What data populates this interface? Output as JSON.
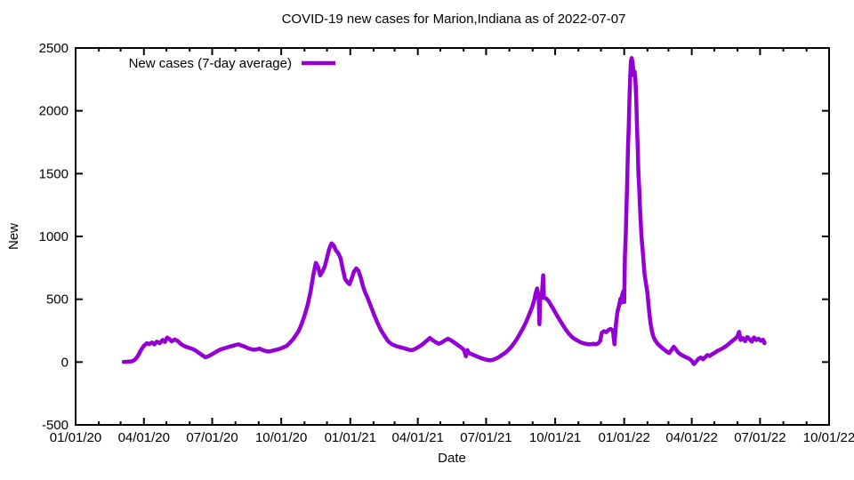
{
  "chart_data": {
    "type": "line",
    "title": "COVID-19 new cases for Marion,Indiana as of 2022-07-07",
    "xlabel": "Date",
    "ylabel": "New",
    "xlim": [
      "01/01/20",
      "10/01/22"
    ],
    "ylim": [
      -500,
      2500
    ],
    "yticks": [
      -500,
      0,
      500,
      1000,
      1500,
      2000,
      2500
    ],
    "xticks": [
      "01/01/20",
      "04/01/20",
      "07/01/20",
      "10/01/20",
      "01/01/21",
      "04/01/21",
      "07/01/21",
      "10/01/21",
      "01/01/22",
      "04/01/22",
      "07/01/22",
      "10/01/22"
    ],
    "minor_ticks": "monthly",
    "grid": false,
    "legend_position": "top-left-inside",
    "line_color": "#9400d3",
    "axis_color": "#000000",
    "line_width": 4.5,
    "series": [
      {
        "name": "New cases (7-day average)",
        "color": "#9400d3",
        "points": [
          [
            "2020-03-05",
            2
          ],
          [
            "2020-03-10",
            3
          ],
          [
            "2020-03-16",
            6
          ],
          [
            "2020-03-20",
            18
          ],
          [
            "2020-03-24",
            48
          ],
          [
            "2020-03-28",
            95
          ],
          [
            "2020-04-01",
            130
          ],
          [
            "2020-04-05",
            150
          ],
          [
            "2020-04-08",
            143
          ],
          [
            "2020-04-12",
            156
          ],
          [
            "2020-04-15",
            140
          ],
          [
            "2020-04-18",
            162
          ],
          [
            "2020-04-22",
            150
          ],
          [
            "2020-04-26",
            176
          ],
          [
            "2020-04-29",
            160
          ],
          [
            "2020-05-02",
            195
          ],
          [
            "2020-05-05",
            183
          ],
          [
            "2020-05-08",
            165
          ],
          [
            "2020-05-12",
            180
          ],
          [
            "2020-05-16",
            168
          ],
          [
            "2020-05-20",
            145
          ],
          [
            "2020-05-24",
            130
          ],
          [
            "2020-05-28",
            120
          ],
          [
            "2020-06-01",
            112
          ],
          [
            "2020-06-05",
            104
          ],
          [
            "2020-06-10",
            88
          ],
          [
            "2020-06-14",
            70
          ],
          [
            "2020-06-18",
            54
          ],
          [
            "2020-06-22",
            38
          ],
          [
            "2020-06-26",
            46
          ],
          [
            "2020-06-30",
            60
          ],
          [
            "2020-07-04",
            74
          ],
          [
            "2020-07-08",
            88
          ],
          [
            "2020-07-12",
            100
          ],
          [
            "2020-07-16",
            108
          ],
          [
            "2020-07-20",
            115
          ],
          [
            "2020-07-24",
            122
          ],
          [
            "2020-07-28",
            128
          ],
          [
            "2020-08-01",
            136
          ],
          [
            "2020-08-05",
            141
          ],
          [
            "2020-08-09",
            132
          ],
          [
            "2020-08-13",
            124
          ],
          [
            "2020-08-17",
            112
          ],
          [
            "2020-08-21",
            104
          ],
          [
            "2020-08-25",
            98
          ],
          [
            "2020-08-29",
            101
          ],
          [
            "2020-09-02",
            108
          ],
          [
            "2020-09-06",
            96
          ],
          [
            "2020-09-10",
            88
          ],
          [
            "2020-09-14",
            84
          ],
          [
            "2020-09-18",
            88
          ],
          [
            "2020-09-22",
            95
          ],
          [
            "2020-09-26",
            100
          ],
          [
            "2020-09-30",
            108
          ],
          [
            "2020-10-04",
            118
          ],
          [
            "2020-10-08",
            128
          ],
          [
            "2020-10-12",
            150
          ],
          [
            "2020-10-16",
            176
          ],
          [
            "2020-10-20",
            210
          ],
          [
            "2020-10-24",
            246
          ],
          [
            "2020-10-28",
            300
          ],
          [
            "2020-11-01",
            368
          ],
          [
            "2020-11-05",
            452
          ],
          [
            "2020-11-09",
            560
          ],
          [
            "2020-11-13",
            700
          ],
          [
            "2020-11-16",
            790
          ],
          [
            "2020-11-19",
            758
          ],
          [
            "2020-11-22",
            690
          ],
          [
            "2020-11-25",
            722
          ],
          [
            "2020-11-28",
            762
          ],
          [
            "2020-12-01",
            830
          ],
          [
            "2020-12-04",
            902
          ],
          [
            "2020-12-07",
            945
          ],
          [
            "2020-12-10",
            928
          ],
          [
            "2020-12-13",
            888
          ],
          [
            "2020-12-16",
            866
          ],
          [
            "2020-12-19",
            828
          ],
          [
            "2020-12-22",
            742
          ],
          [
            "2020-12-25",
            662
          ],
          [
            "2020-12-28",
            636
          ],
          [
            "2020-12-31",
            620
          ],
          [
            "2021-01-03",
            668
          ],
          [
            "2021-01-06",
            722
          ],
          [
            "2021-01-09",
            745
          ],
          [
            "2021-01-12",
            726
          ],
          [
            "2021-01-15",
            670
          ],
          [
            "2021-01-18",
            602
          ],
          [
            "2021-01-21",
            552
          ],
          [
            "2021-01-24",
            512
          ],
          [
            "2021-01-27",
            466
          ],
          [
            "2021-01-30",
            420
          ],
          [
            "2021-02-02",
            372
          ],
          [
            "2021-02-05",
            330
          ],
          [
            "2021-02-08",
            290
          ],
          [
            "2021-02-11",
            252
          ],
          [
            "2021-02-14",
            224
          ],
          [
            "2021-02-17",
            196
          ],
          [
            "2021-02-20",
            170
          ],
          [
            "2021-02-23",
            152
          ],
          [
            "2021-02-26",
            140
          ],
          [
            "2021-03-02",
            130
          ],
          [
            "2021-03-06",
            122
          ],
          [
            "2021-03-10",
            116
          ],
          [
            "2021-03-14",
            110
          ],
          [
            "2021-03-18",
            102
          ],
          [
            "2021-03-22",
            94
          ],
          [
            "2021-03-26",
            98
          ],
          [
            "2021-03-30",
            110
          ],
          [
            "2021-04-03",
            124
          ],
          [
            "2021-04-07",
            140
          ],
          [
            "2021-04-11",
            160
          ],
          [
            "2021-04-14",
            176
          ],
          [
            "2021-04-17",
            192
          ],
          [
            "2021-04-21",
            172
          ],
          [
            "2021-04-25",
            158
          ],
          [
            "2021-04-29",
            146
          ],
          [
            "2021-05-03",
            156
          ],
          [
            "2021-05-07",
            172
          ],
          [
            "2021-05-11",
            186
          ],
          [
            "2021-05-15",
            174
          ],
          [
            "2021-05-19",
            158
          ],
          [
            "2021-05-23",
            140
          ],
          [
            "2021-05-27",
            124
          ],
          [
            "2021-05-31",
            106
          ],
          [
            "2021-06-02",
            88
          ],
          [
            "2021-06-04",
            46
          ],
          [
            "2021-06-06",
            96
          ],
          [
            "2021-06-08",
            72
          ],
          [
            "2021-06-12",
            62
          ],
          [
            "2021-06-16",
            52
          ],
          [
            "2021-06-20",
            42
          ],
          [
            "2021-06-24",
            32
          ],
          [
            "2021-06-28",
            24
          ],
          [
            "2021-07-02",
            18
          ],
          [
            "2021-07-06",
            14
          ],
          [
            "2021-07-10",
            18
          ],
          [
            "2021-07-14",
            28
          ],
          [
            "2021-07-18",
            40
          ],
          [
            "2021-07-22",
            56
          ],
          [
            "2021-07-26",
            72
          ],
          [
            "2021-07-30",
            92
          ],
          [
            "2021-08-03",
            118
          ],
          [
            "2021-08-07",
            148
          ],
          [
            "2021-08-11",
            185
          ],
          [
            "2021-08-15",
            225
          ],
          [
            "2021-08-19",
            268
          ],
          [
            "2021-08-23",
            316
          ],
          [
            "2021-08-27",
            372
          ],
          [
            "2021-08-31",
            432
          ],
          [
            "2021-09-03",
            492
          ],
          [
            "2021-09-05",
            545
          ],
          [
            "2021-09-07",
            586
          ],
          [
            "2021-09-09",
            522
          ],
          [
            "2021-09-10",
            302
          ],
          [
            "2021-09-11",
            500
          ],
          [
            "2021-09-13",
            512
          ],
          [
            "2021-09-15",
            690
          ],
          [
            "2021-09-16",
            512
          ],
          [
            "2021-09-19",
            506
          ],
          [
            "2021-09-22",
            488
          ],
          [
            "2021-09-25",
            458
          ],
          [
            "2021-09-28",
            428
          ],
          [
            "2021-10-01",
            396
          ],
          [
            "2021-10-04",
            366
          ],
          [
            "2021-10-07",
            336
          ],
          [
            "2021-10-10",
            306
          ],
          [
            "2021-10-13",
            278
          ],
          [
            "2021-10-16",
            252
          ],
          [
            "2021-10-19",
            228
          ],
          [
            "2021-10-22",
            208
          ],
          [
            "2021-10-25",
            192
          ],
          [
            "2021-10-28",
            180
          ],
          [
            "2021-10-31",
            170
          ],
          [
            "2021-11-03",
            160
          ],
          [
            "2021-11-06",
            153
          ],
          [
            "2021-11-09",
            148
          ],
          [
            "2021-11-12",
            144
          ],
          [
            "2021-11-15",
            141
          ],
          [
            "2021-11-18",
            142
          ],
          [
            "2021-11-21",
            146
          ],
          [
            "2021-11-24",
            141
          ],
          [
            "2021-11-27",
            148
          ],
          [
            "2021-11-30",
            168
          ],
          [
            "2021-12-02",
            232
          ],
          [
            "2021-12-05",
            246
          ],
          [
            "2021-12-08",
            238
          ],
          [
            "2021-12-11",
            256
          ],
          [
            "2021-12-14",
            264
          ],
          [
            "2021-12-17",
            250
          ],
          [
            "2021-12-19",
            142
          ],
          [
            "2021-12-21",
            300
          ],
          [
            "2021-12-23",
            400
          ],
          [
            "2021-12-25",
            448
          ],
          [
            "2021-12-27",
            505
          ],
          [
            "2021-12-28",
            472
          ],
          [
            "2021-12-29",
            528
          ],
          [
            "2021-12-31",
            565
          ],
          [
            "2022-01-01",
            478
          ],
          [
            "2022-01-02",
            850
          ],
          [
            "2022-01-03",
            1002
          ],
          [
            "2022-01-04",
            1215
          ],
          [
            "2022-01-05",
            1450
          ],
          [
            "2022-01-06",
            1700
          ],
          [
            "2022-01-07",
            1876
          ],
          [
            "2022-01-08",
            2100
          ],
          [
            "2022-01-09",
            2268
          ],
          [
            "2022-01-10",
            2395
          ],
          [
            "2022-01-11",
            2420
          ],
          [
            "2022-01-12",
            2392
          ],
          [
            "2022-01-13",
            2330
          ],
          [
            "2022-01-14",
            2282
          ],
          [
            "2022-01-15",
            2312
          ],
          [
            "2022-01-16",
            2248
          ],
          [
            "2022-01-17",
            2098
          ],
          [
            "2022-01-18",
            1890
          ],
          [
            "2022-01-19",
            1702
          ],
          [
            "2022-01-20",
            1496
          ],
          [
            "2022-01-21",
            1380
          ],
          [
            "2022-01-22",
            1236
          ],
          [
            "2022-01-24",
            1000
          ],
          [
            "2022-01-26",
            860
          ],
          [
            "2022-01-28",
            702
          ],
          [
            "2022-01-30",
            622
          ],
          [
            "2022-02-01",
            550
          ],
          [
            "2022-02-03",
            420
          ],
          [
            "2022-02-05",
            312
          ],
          [
            "2022-02-07",
            246
          ],
          [
            "2022-02-09",
            200
          ],
          [
            "2022-02-12",
            166
          ],
          [
            "2022-02-15",
            142
          ],
          [
            "2022-02-18",
            126
          ],
          [
            "2022-02-21",
            110
          ],
          [
            "2022-02-24",
            96
          ],
          [
            "2022-02-27",
            82
          ],
          [
            "2022-03-02",
            72
          ],
          [
            "2022-03-05",
            96
          ],
          [
            "2022-03-08",
            122
          ],
          [
            "2022-03-11",
            100
          ],
          [
            "2022-03-14",
            76
          ],
          [
            "2022-03-17",
            62
          ],
          [
            "2022-03-20",
            52
          ],
          [
            "2022-03-23",
            42
          ],
          [
            "2022-03-26",
            34
          ],
          [
            "2022-03-29",
            24
          ],
          [
            "2022-04-01",
            10
          ],
          [
            "2022-04-04",
            -16
          ],
          [
            "2022-04-07",
            6
          ],
          [
            "2022-04-10",
            26
          ],
          [
            "2022-04-13",
            36
          ],
          [
            "2022-04-16",
            22
          ],
          [
            "2022-04-19",
            40
          ],
          [
            "2022-04-22",
            56
          ],
          [
            "2022-04-25",
            48
          ],
          [
            "2022-04-28",
            62
          ],
          [
            "2022-05-01",
            72
          ],
          [
            "2022-05-05",
            88
          ],
          [
            "2022-05-09",
            100
          ],
          [
            "2022-05-13",
            112
          ],
          [
            "2022-05-17",
            128
          ],
          [
            "2022-05-21",
            148
          ],
          [
            "2022-05-25",
            168
          ],
          [
            "2022-05-29",
            186
          ],
          [
            "2022-06-01",
            206
          ],
          [
            "2022-06-03",
            240
          ],
          [
            "2022-06-05",
            176
          ],
          [
            "2022-06-08",
            192
          ],
          [
            "2022-06-11",
            166
          ],
          [
            "2022-06-14",
            200
          ],
          [
            "2022-06-17",
            182
          ],
          [
            "2022-06-20",
            162
          ],
          [
            "2022-06-23",
            196
          ],
          [
            "2022-06-26",
            176
          ],
          [
            "2022-06-29",
            186
          ],
          [
            "2022-07-02",
            170
          ],
          [
            "2022-07-05",
            178
          ],
          [
            "2022-07-07",
            150
          ]
        ]
      }
    ]
  }
}
